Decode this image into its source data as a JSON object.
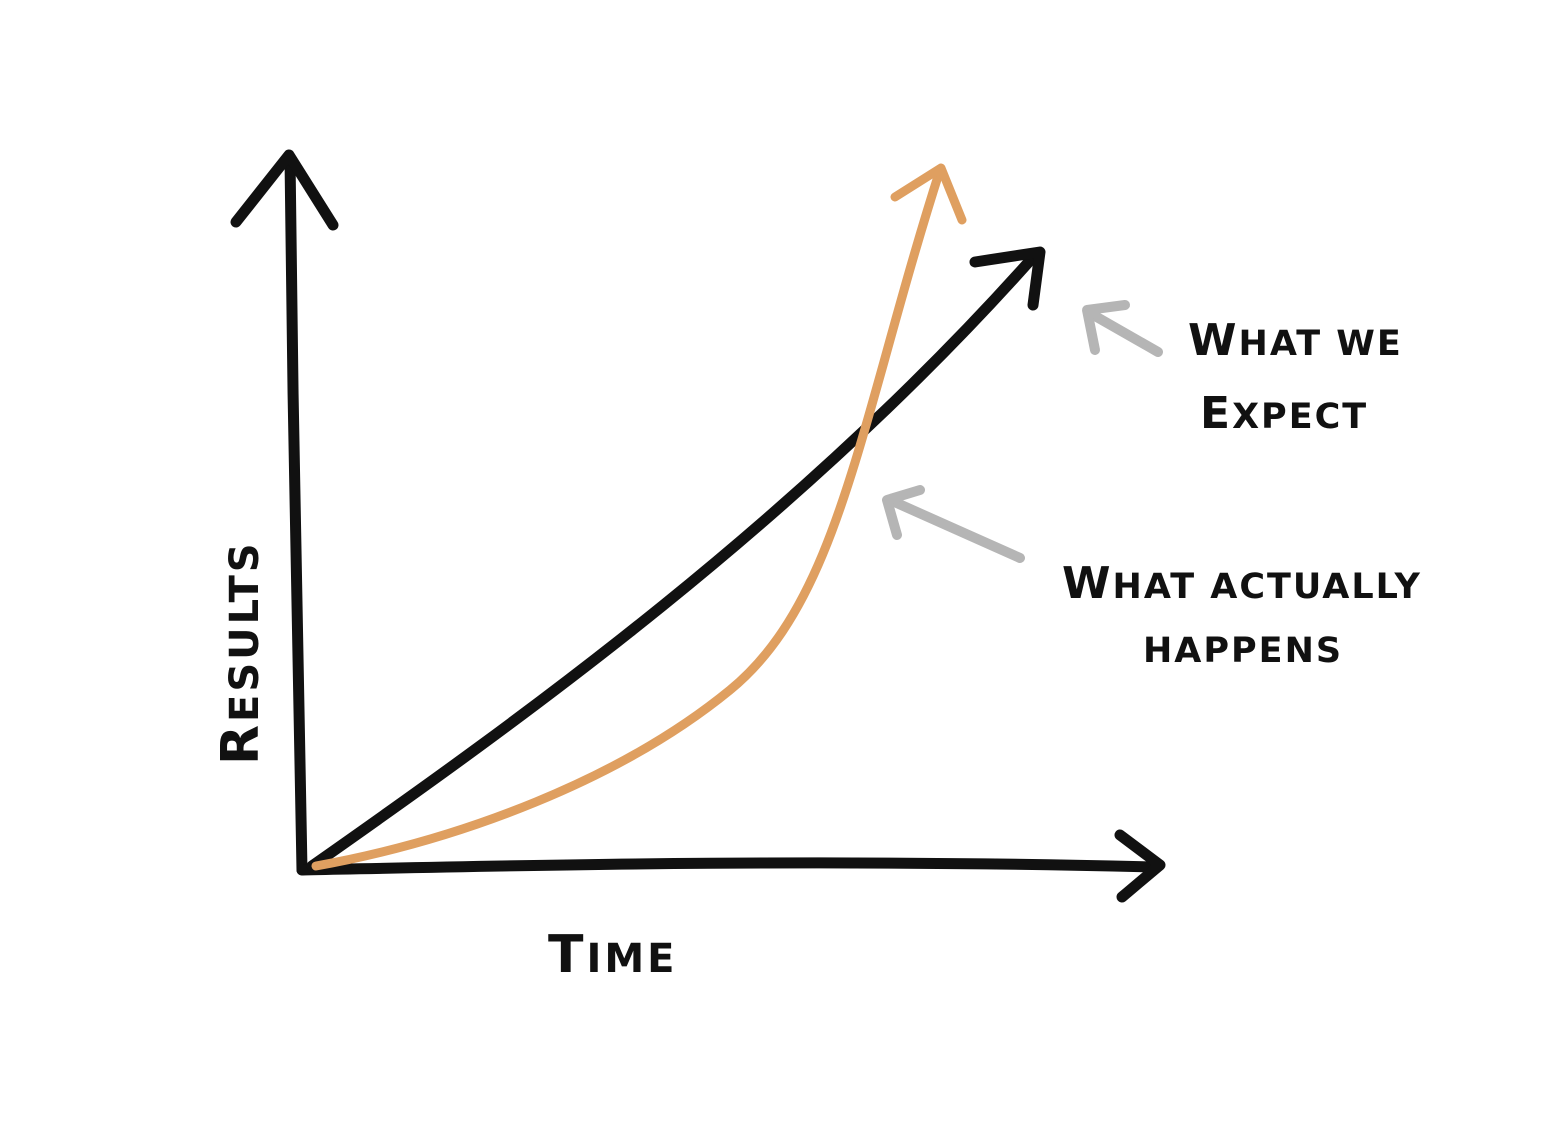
{
  "diagram": {
    "y_axis_label": {
      "initial": "R",
      "rest": "ESULTS"
    },
    "x_axis_label": {
      "initial": "T",
      "rest": "IME"
    },
    "annotations": {
      "expected": {
        "line1_initial": "W",
        "line1_rest": "HAT WE",
        "line2_initial": "E",
        "line2_rest": "XPECT"
      },
      "actual": {
        "line1_initial": "W",
        "line1_rest": "HAT ACTUALLY",
        "line2": "HAPPENS"
      }
    }
  },
  "colors": {
    "ink": "#111111",
    "actual_curve": "#df9f60",
    "pointer_arrow": "#b5b5b5",
    "background": "#ffffff"
  }
}
